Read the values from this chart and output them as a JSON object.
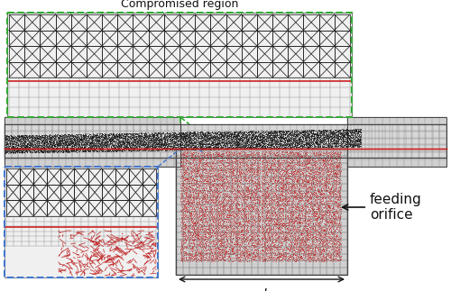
{
  "fig_width": 5.0,
  "fig_height": 3.23,
  "dpi": 100,
  "bg_color": "#ffffff",
  "title": "Compromised region",
  "title_fontsize": 9,
  "label_feeding": "feeding\norifice",
  "label_feeding_fontsize": 11,
  "label_d": "d",
  "label_d_fontsize": 11,
  "grid_color": "#888888",
  "tri_mesh_color": "#222222",
  "red_region_color": "#bb1111",
  "red_line_color": "#cc2222",
  "green_box_color": "#33aa33",
  "blue_box_color": "#4477cc",
  "dark_region_color": "#111111"
}
